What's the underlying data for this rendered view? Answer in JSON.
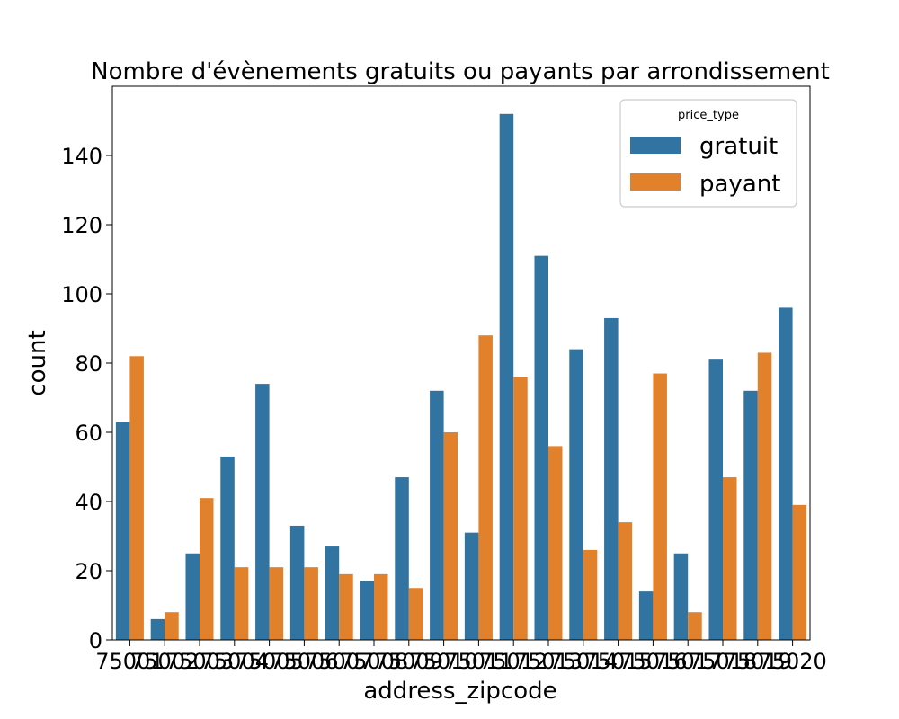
{
  "chart_data": {
    "type": "bar",
    "title": "Nombre d'évènements gratuits ou payants par arrondissement",
    "xlabel": "address_zipcode",
    "ylabel": "count",
    "ylim": [
      0,
      160
    ],
    "yticks": [
      0,
      20,
      40,
      60,
      80,
      100,
      120,
      140
    ],
    "grid": false,
    "legend": {
      "title": "price_type",
      "placement": "top-right"
    },
    "categories": [
      "75001",
      "75002",
      "75003",
      "75004",
      "75005",
      "75006",
      "75007",
      "75008",
      "75009",
      "75010",
      "75011",
      "75012",
      "75013",
      "75014",
      "75015",
      "75016",
      "75017",
      "75018",
      "75019",
      "75020"
    ],
    "series": [
      {
        "name": "gratuit",
        "color": "#3274a1",
        "values": [
          63,
          6,
          25,
          53,
          74,
          33,
          27,
          17,
          47,
          72,
          31,
          152,
          111,
          84,
          93,
          14,
          25,
          81,
          72,
          96
        ]
      },
      {
        "name": "payant",
        "color": "#e1812c",
        "values": [
          82,
          8,
          41,
          21,
          21,
          21,
          19,
          19,
          15,
          60,
          88,
          76,
          56,
          26,
          34,
          77,
          8,
          47,
          83,
          39
        ]
      }
    ]
  }
}
